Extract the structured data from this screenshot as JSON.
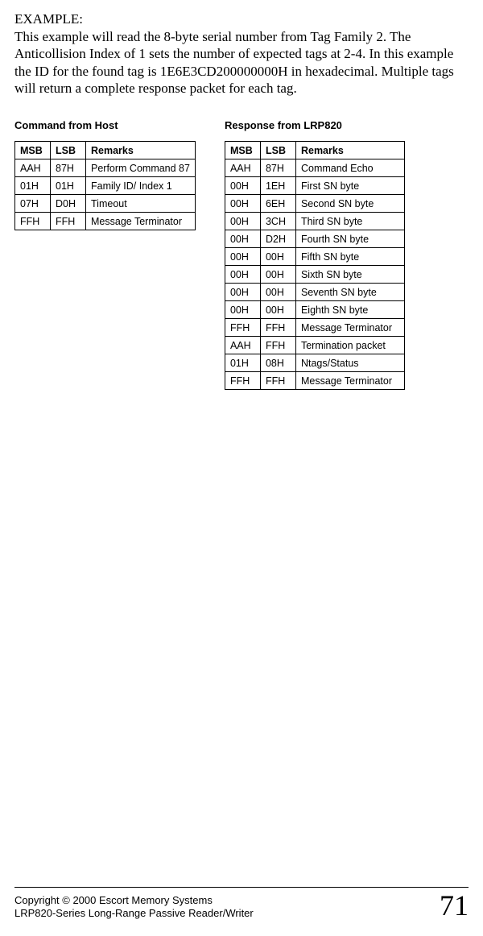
{
  "example": {
    "label": "EXAMPLE:",
    "body": "This example will read the 8-byte serial number from Tag Family 2. The Anticollision Index of 1 sets the number of expected tags at 2-4.  In this example the ID for the found tag is 1E6E3CD200000000H in hexadecimal. Multiple tags will return a complete response packet for each tag."
  },
  "host": {
    "title": "Command from Host",
    "columns": [
      "MSB",
      "LSB",
      "Remarks"
    ],
    "rows": [
      [
        "AAH",
        "87H",
        "Perform Command 87"
      ],
      [
        "01H",
        "01H",
        "Family ID/ Index 1"
      ],
      [
        "07H",
        "D0H",
        "Timeout"
      ],
      [
        "FFH",
        "FFH",
        "Message Terminator"
      ]
    ]
  },
  "response": {
    "title": "Response from LRP820",
    "columns": [
      "MSB",
      "LSB",
      "Remarks"
    ],
    "rows": [
      [
        "AAH",
        "87H",
        "Command Echo"
      ],
      [
        "00H",
        "1EH",
        "First SN byte"
      ],
      [
        "00H",
        "6EH",
        "Second SN byte"
      ],
      [
        "00H",
        "3CH",
        "Third SN byte"
      ],
      [
        "00H",
        "D2H",
        "Fourth SN byte"
      ],
      [
        "00H",
        "00H",
        "Fifth SN byte"
      ],
      [
        "00H",
        "00H",
        "Sixth SN byte"
      ],
      [
        "00H",
        "00H",
        "Seventh SN byte"
      ],
      [
        "00H",
        "00H",
        "Eighth SN byte"
      ],
      [
        "FFH",
        "FFH",
        "Message Terminator"
      ],
      [
        "AAH",
        "FFH",
        "Termination packet"
      ],
      [
        "01H",
        "08H",
        "Ntags/Status"
      ],
      [
        "FFH",
        "FFH",
        "Message Terminator"
      ]
    ]
  },
  "footer": {
    "line1": "Copyright © 2000 Escort Memory Systems",
    "line2": "LRP820-Series Long-Range Passive Reader/Writer",
    "page": "71"
  }
}
